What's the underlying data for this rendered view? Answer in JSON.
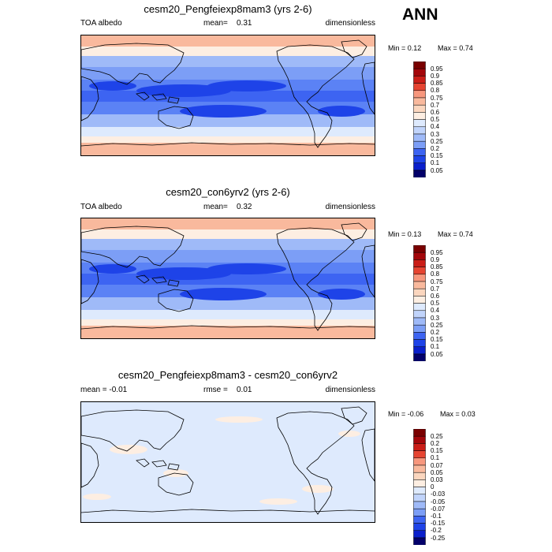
{
  "season_label": "ANN",
  "colors": {
    "neg": [
      "#03006a",
      "#0a1fcc",
      "#1e43e8",
      "#3d64f2",
      "#5b82f5",
      "#7c9ef6",
      "#9fbaf8",
      "#c1d4fb",
      "#deeafd"
    ],
    "pos": [
      "#fdeee2",
      "#fbd6be",
      "#f9b99d",
      "#f7977d",
      "#f26c53",
      "#e64431",
      "#ca1d17",
      "#a3060a",
      "#7a0000"
    ]
  },
  "chart_data": [
    {
      "type": "heatmap",
      "title": "cesm20_Pengfeiexp8mam3 (yrs 2-6)",
      "left_label": "TOA albedo",
      "mid_label": "mean=",
      "mid_value": "0.31",
      "right_label": "dimensionless",
      "min_text": "Min =  0.12",
      "max_text": "Max =   0.74",
      "min": 0.12,
      "max": 0.74,
      "mean": 0.31,
      "colorbar_levels": [
        "0.95",
        "0.9",
        "0.85",
        "0.8",
        "0.75",
        "0.7",
        "0.6",
        "0.5",
        "0.4",
        "0.3",
        "0.25",
        "0.2",
        "0.15",
        "0.1",
        "0.05"
      ]
    },
    {
      "type": "heatmap",
      "title": "cesm20_con6yrv2 (yrs 2-6)",
      "left_label": "TOA albedo",
      "mid_label": "mean=",
      "mid_value": "0.32",
      "right_label": "dimensionless",
      "min_text": "Min =  0.13",
      "max_text": "Max =   0.74",
      "min": 0.13,
      "max": 0.74,
      "mean": 0.32,
      "colorbar_levels": [
        "0.95",
        "0.9",
        "0.85",
        "0.8",
        "0.75",
        "0.7",
        "0.6",
        "0.5",
        "0.4",
        "0.3",
        "0.25",
        "0.2",
        "0.15",
        "0.1",
        "0.05"
      ]
    },
    {
      "type": "heatmap",
      "title": "cesm20_Pengfeiexp8mam3 - cesm20_con6yrv2",
      "left_label": "mean =  -0.01",
      "mid_label": "rmse =",
      "mid_value": "0.01",
      "right_label": "dimensionless",
      "min_text": "Min =  -0.06",
      "max_text": "Max =   0.03",
      "min": -0.06,
      "max": 0.03,
      "mean": -0.01,
      "rmse": 0.01,
      "colorbar_levels": [
        "0.25",
        "0.2",
        "0.15",
        "0.1",
        "0.07",
        "0.05",
        "0.03",
        "0",
        "-0.03",
        "-0.05",
        "-0.07",
        "-0.1",
        "-0.15",
        "-0.2",
        "-0.25"
      ]
    }
  ]
}
